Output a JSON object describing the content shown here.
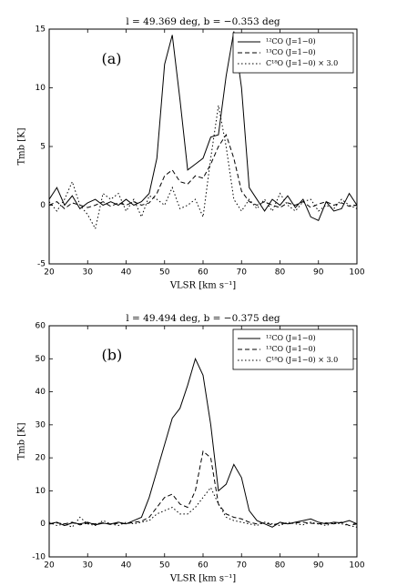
{
  "chart_data": [
    {
      "type": "line",
      "title": "l = 49.369 deg, b = −0.353 deg",
      "xlabel": "VLSR [km s⁻¹]",
      "ylabel": "Tmb [K]",
      "annotation": "(a)",
      "xlim": [
        20,
        100
      ],
      "xticks": [
        20,
        30,
        40,
        50,
        60,
        70,
        80,
        90,
        100
      ],
      "ylim": [
        -5,
        15
      ],
      "yticks": [
        -5,
        0,
        5,
        10,
        15
      ],
      "legend": "upper right",
      "x": [
        20,
        22,
        24,
        26,
        28,
        30,
        32,
        34,
        36,
        38,
        40,
        42,
        44,
        46,
        48,
        50,
        52,
        54,
        56,
        58,
        60,
        62,
        64,
        66,
        68,
        70,
        72,
        74,
        76,
        78,
        80,
        82,
        84,
        86,
        88,
        90,
        92,
        94,
        96,
        98,
        100
      ],
      "series": [
        {
          "name": "¹²CO (J=1−0)",
          "color": "#000000",
          "dash": "solid",
          "values": [
            0.5,
            1.5,
            0,
            0.8,
            -0.3,
            0.2,
            0.5,
            0,
            0.3,
            0,
            0.5,
            0,
            0.3,
            1,
            4,
            12,
            14.5,
            9,
            3,
            3.5,
            4,
            5.8,
            6,
            11,
            14.8,
            10,
            1.5,
            0.5,
            -0.5,
            0.5,
            0,
            0.8,
            -0.2,
            0.5,
            -1,
            -1.3,
            0.3,
            -0.5,
            -0.3,
            1,
            0
          ]
        },
        {
          "name": "¹³CO (J=1−0)",
          "color": "#000000",
          "dash": "dashed",
          "values": [
            0,
            0.3,
            -0.3,
            0.2,
            0,
            -0.2,
            0,
            0.3,
            -0.1,
            0.2,
            0,
            0.3,
            0,
            0.2,
            1,
            2.5,
            3,
            2,
            1.8,
            2.5,
            2.3,
            3.5,
            5,
            6,
            4,
            1.2,
            0.3,
            0,
            0.3,
            0,
            -0.2,
            0.2,
            0,
            0.3,
            -0.2,
            0.1,
            0.3,
            0,
            0.2,
            -0.1,
            0
          ]
        },
        {
          "name": "C¹⁸O (J=1−0) × 3.0",
          "color": "#000000",
          "dash": "dotted",
          "values": [
            0.3,
            -0.5,
            0.5,
            2,
            0,
            -0.8,
            -2,
            1,
            0.5,
            1,
            -0.5,
            0.5,
            -1,
            0.8,
            0.5,
            0,
            1.5,
            -0.3,
            0,
            0.5,
            -1,
            4,
            8.5,
            5,
            0.5,
            -0.5,
            0.5,
            -0.3,
            0.5,
            -0.5,
            1,
            0,
            -0.5,
            0.3,
            0.5,
            -0.5,
            0,
            -0.3,
            0.5,
            0,
            -0.3
          ]
        }
      ]
    },
    {
      "type": "line",
      "title": "l = 49.494 deg, b = −0.375 deg",
      "xlabel": "VLSR [km s⁻¹]",
      "ylabel": "Tmb [K]",
      "annotation": "(b)",
      "xlim": [
        20,
        100
      ],
      "xticks": [
        20,
        30,
        40,
        50,
        60,
        70,
        80,
        90,
        100
      ],
      "ylim": [
        -10,
        60
      ],
      "yticks": [
        -10,
        0,
        10,
        20,
        30,
        40,
        50,
        60
      ],
      "legend": "upper right",
      "x": [
        20,
        22,
        24,
        26,
        28,
        30,
        32,
        34,
        36,
        38,
        40,
        42,
        44,
        46,
        48,
        50,
        52,
        54,
        56,
        58,
        60,
        62,
        64,
        66,
        68,
        70,
        72,
        74,
        76,
        78,
        80,
        82,
        84,
        86,
        88,
        90,
        92,
        94,
        96,
        98,
        100
      ],
      "series": [
        {
          "name": "¹²CO (J=1−0)",
          "color": "#000000",
          "dash": "solid",
          "values": [
            0,
            0.5,
            -0.5,
            0.3,
            0,
            0.5,
            -0.3,
            0.2,
            0,
            0.5,
            0,
            1,
            2,
            8,
            16,
            24,
            32,
            35,
            42,
            50,
            45,
            30,
            10,
            12,
            18,
            14,
            4,
            1,
            0,
            -1,
            0.5,
            0,
            0.5,
            1,
            1.5,
            0.5,
            0,
            0.5,
            0.3,
            1,
            0
          ]
        },
        {
          "name": "¹³CO (J=1−0)",
          "color": "#000000",
          "dash": "dashed",
          "values": [
            0,
            0.3,
            0,
            0.5,
            -0.3,
            0.2,
            0,
            0.3,
            -0.2,
            0.2,
            0,
            0.5,
            0.8,
            2,
            5,
            8,
            9,
            6,
            5,
            10,
            22,
            20,
            6,
            3,
            2,
            1.5,
            0.5,
            0,
            0.3,
            -0.3,
            0.2,
            0,
            0.3,
            0.5,
            0.2,
            0,
            0.3,
            0,
            0.5,
            -0.5,
            0
          ]
        },
        {
          "name": "C¹⁸O (J=1−0) × 3.0",
          "color": "#000000",
          "dash": "dotted",
          "values": [
            0.5,
            -0.5,
            0,
            -1,
            2,
            0,
            -0.5,
            1,
            0,
            -0.5,
            0.5,
            0,
            0.5,
            1,
            3,
            4,
            5,
            3,
            3,
            5,
            8,
            11,
            6,
            2,
            1,
            0.5,
            0,
            -0.5,
            0.5,
            0,
            -0.5,
            0.5,
            0,
            -0.3,
            0.5,
            0,
            -0.5,
            0.3,
            0,
            -0.5,
            -1
          ]
        }
      ]
    }
  ]
}
